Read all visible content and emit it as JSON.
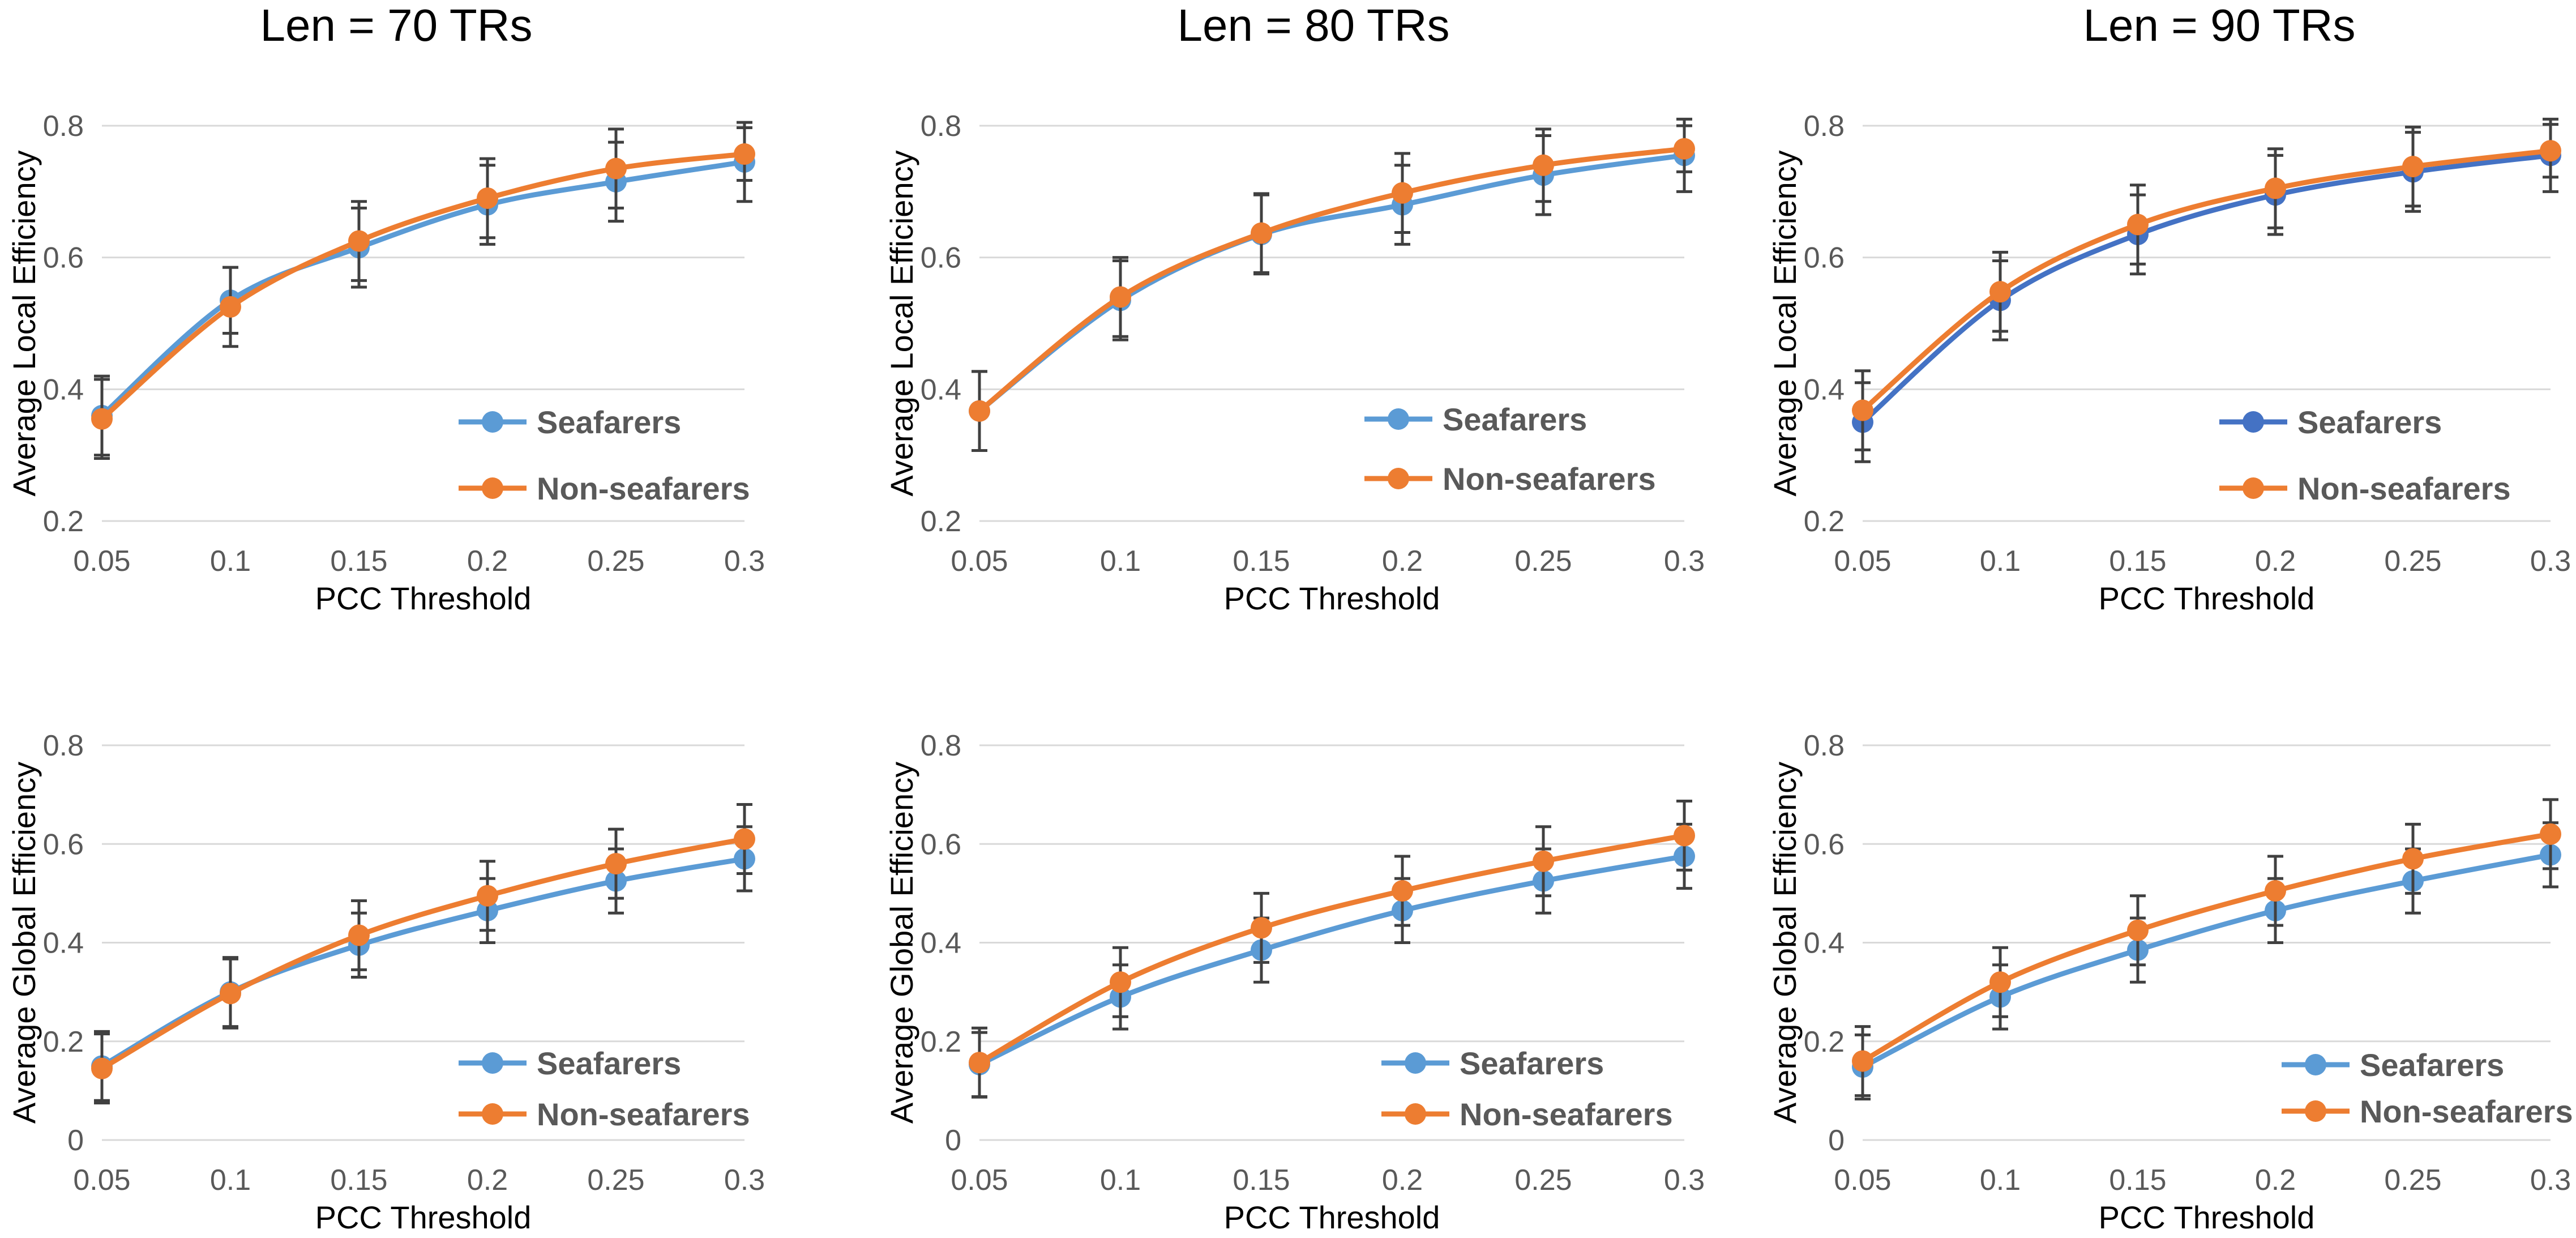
{
  "figure": {
    "column_titles": [
      "Len = 70 TRs",
      "Len = 80 TRs",
      "Len = 90 TRs"
    ]
  },
  "colors": {
    "seafarers": "#5b9bd5",
    "seafarers_dark": "#4472c4",
    "non_seafarers": "#ed7d31",
    "gridline": "#d9d9d9",
    "errorbar": "#404040"
  },
  "chart_data": [
    {
      "type": "line",
      "title": "Len = 70 TRs",
      "xlabel": "PCC Threshold",
      "ylabel": "Average Local Efficiency",
      "categories": [
        "0.05",
        "0.1",
        "0.15",
        "0.2",
        "0.25",
        "0.3"
      ],
      "yticks": [
        "0.2",
        "0.4",
        "0.6",
        "0.8"
      ],
      "ylim": [
        0.2,
        0.8
      ],
      "grid": true,
      "legend_position": "lower-right",
      "series": [
        {
          "name": "Seafarers",
          "color_key": "seafarers",
          "values": [
            0.36,
            0.535,
            0.615,
            0.68,
            0.715,
            0.745
          ],
          "errors": [
            0.06,
            0.05,
            0.06,
            0.06,
            0.06,
            0.06
          ]
        },
        {
          "name": "Non-seafarers",
          "color_key": "non_seafarers",
          "values": [
            0.355,
            0.525,
            0.625,
            0.69,
            0.735,
            0.757
          ],
          "errors": [
            0.06,
            0.06,
            0.06,
            0.06,
            0.06,
            0.04
          ]
        }
      ]
    },
    {
      "type": "line",
      "title": "Len = 80 TRs",
      "xlabel": "PCC Threshold",
      "ylabel": "Average Local Efficiency",
      "categories": [
        "0.05",
        "0.1",
        "0.15",
        "0.2",
        "0.25",
        "0.3"
      ],
      "yticks": [
        "0.2",
        "0.4",
        "0.6",
        "0.8"
      ],
      "ylim": [
        0.2,
        0.8
      ],
      "grid": true,
      "legend_position": "lower-right",
      "series": [
        {
          "name": "Seafarers",
          "color_key": "seafarers",
          "values": [
            0.367,
            0.535,
            0.635,
            0.68,
            0.725,
            0.755
          ],
          "errors": [
            0.06,
            0.06,
            0.06,
            0.06,
            0.06,
            0.055
          ]
        },
        {
          "name": "Non-seafarers",
          "color_key": "non_seafarers",
          "values": [
            0.367,
            0.54,
            0.637,
            0.698,
            0.74,
            0.765
          ],
          "errors": [
            0.06,
            0.06,
            0.06,
            0.06,
            0.055,
            0.035
          ]
        }
      ]
    },
    {
      "type": "line",
      "title": "Len = 90 TRs",
      "xlabel": "PCC Threshold",
      "ylabel": "Average Local Efficiency",
      "categories": [
        "0.05",
        "0.1",
        "0.15",
        "0.2",
        "0.25",
        "0.3"
      ],
      "yticks": [
        "0.2",
        "0.4",
        "0.6",
        "0.8"
      ],
      "ylim": [
        0.2,
        0.8
      ],
      "grid": true,
      "legend_position": "lower-right",
      "series": [
        {
          "name": "Seafarers",
          "color_key": "seafarers_dark",
          "values": [
            0.35,
            0.535,
            0.635,
            0.695,
            0.73,
            0.755
          ],
          "errors": [
            0.06,
            0.06,
            0.06,
            0.06,
            0.06,
            0.055
          ]
        },
        {
          "name": "Non-seafarers",
          "color_key": "non_seafarers",
          "values": [
            0.368,
            0.548,
            0.65,
            0.705,
            0.738,
            0.762
          ],
          "errors": [
            0.06,
            0.06,
            0.06,
            0.06,
            0.06,
            0.04
          ]
        }
      ]
    },
    {
      "type": "line",
      "title": "",
      "xlabel": "PCC Threshold",
      "ylabel": "Average Global Efficiency",
      "categories": [
        "0.05",
        "0.1",
        "0.15",
        "0.2",
        "0.25",
        "0.3"
      ],
      "yticks": [
        "0",
        "0.2",
        "0.4",
        "0.6",
        "0.8"
      ],
      "ylim": [
        0,
        0.8
      ],
      "grid": true,
      "legend_position": "lower-right",
      "series": [
        {
          "name": "Seafarers",
          "color_key": "seafarers",
          "values": [
            0.15,
            0.3,
            0.395,
            0.465,
            0.525,
            0.57
          ],
          "errors": [
            0.07,
            0.07,
            0.065,
            0.065,
            0.065,
            0.065
          ]
        },
        {
          "name": "Non-seafarers",
          "color_key": "non_seafarers",
          "values": [
            0.145,
            0.297,
            0.415,
            0.495,
            0.56,
            0.61
          ],
          "errors": [
            0.07,
            0.07,
            0.07,
            0.07,
            0.07,
            0.07
          ]
        }
      ]
    },
    {
      "type": "line",
      "title": "",
      "xlabel": "PCC Threshold",
      "ylabel": "Average Global Efficiency",
      "categories": [
        "0.05",
        "0.1",
        "0.15",
        "0.2",
        "0.25",
        "0.3"
      ],
      "yticks": [
        "0",
        "0.2",
        "0.4",
        "0.6",
        "0.8"
      ],
      "ylim": [
        0,
        0.8
      ],
      "grid": true,
      "legend_position": "lower-right",
      "series": [
        {
          "name": "Seafarers",
          "color_key": "seafarers",
          "values": [
            0.153,
            0.29,
            0.385,
            0.465,
            0.525,
            0.575
          ],
          "errors": [
            0.065,
            0.065,
            0.065,
            0.065,
            0.065,
            0.065
          ]
        },
        {
          "name": "Non-seafarers",
          "color_key": "non_seafarers",
          "values": [
            0.157,
            0.32,
            0.43,
            0.505,
            0.565,
            0.617
          ],
          "errors": [
            0.07,
            0.07,
            0.07,
            0.07,
            0.07,
            0.07
          ]
        }
      ]
    },
    {
      "type": "line",
      "title": "",
      "xlabel": "PCC Threshold",
      "ylabel": "Average Global Efficiency",
      "categories": [
        "0.05",
        "0.1",
        "0.15",
        "0.2",
        "0.25",
        "0.3"
      ],
      "yticks": [
        "0",
        "0.2",
        "0.4",
        "0.6",
        "0.8"
      ],
      "ylim": [
        0,
        0.8
      ],
      "grid": true,
      "legend_position": "lower-right",
      "series": [
        {
          "name": "Seafarers",
          "color_key": "seafarers",
          "values": [
            0.148,
            0.29,
            0.385,
            0.465,
            0.525,
            0.578
          ],
          "errors": [
            0.065,
            0.065,
            0.065,
            0.065,
            0.065,
            0.065
          ]
        },
        {
          "name": "Non-seafarers",
          "color_key": "non_seafarers",
          "values": [
            0.16,
            0.32,
            0.425,
            0.505,
            0.57,
            0.62
          ],
          "errors": [
            0.07,
            0.07,
            0.07,
            0.07,
            0.07,
            0.07
          ]
        }
      ]
    }
  ]
}
